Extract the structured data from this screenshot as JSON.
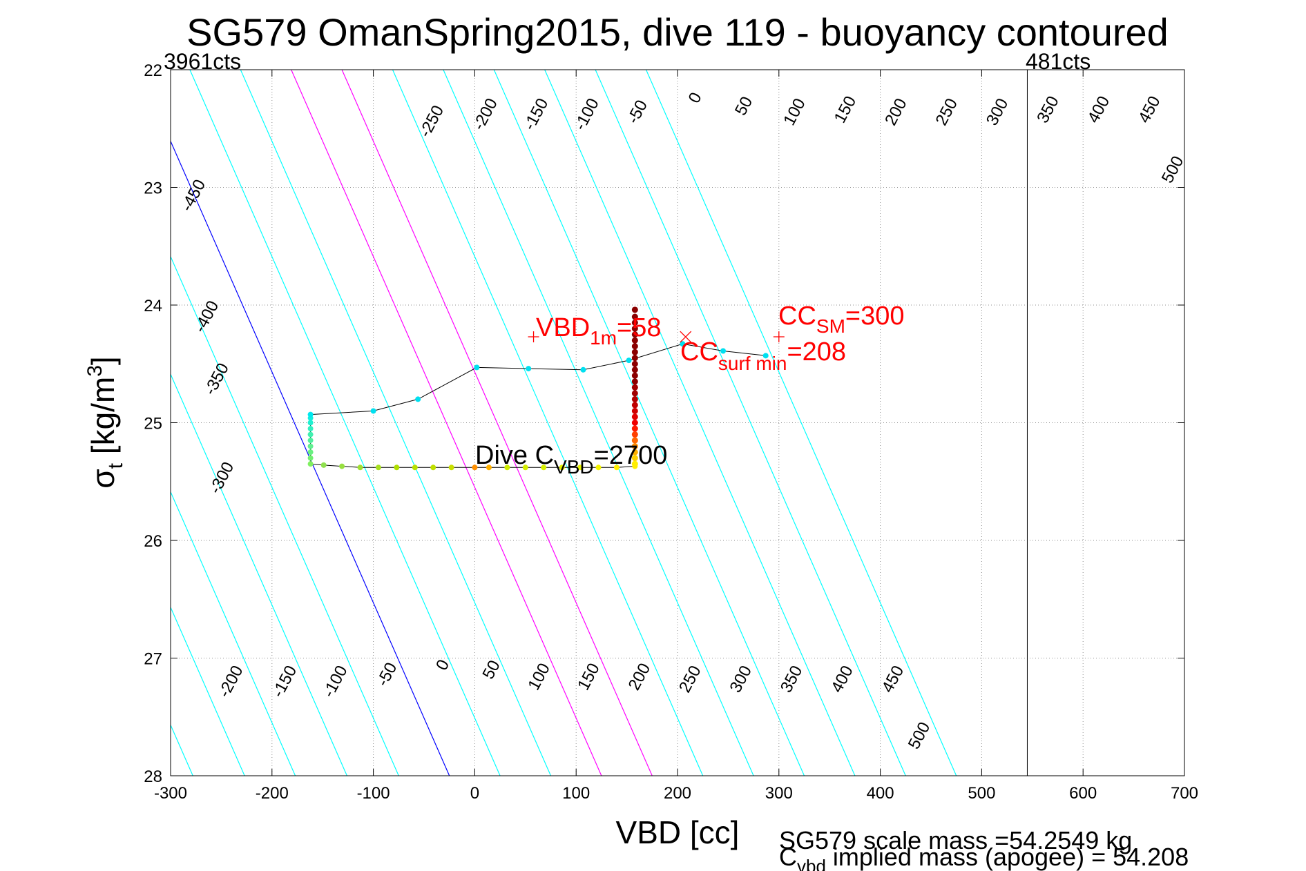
{
  "chart_data": {
    "type": "scatter",
    "title": "SG579 OmanSpring2015, dive 119 - buoyancy contoured",
    "xlabel": "VBD [cc]",
    "ylabel_main": "σ",
    "ylabel_sub": "t",
    "ylabel_rest": " [kg/m",
    "ylabel_sup": "3",
    "ylabel_close": "]",
    "xlim": [
      -300,
      700
    ],
    "ylim": [
      22,
      28
    ],
    "y_reversed": true,
    "grid": true,
    "xticks": [
      -300,
      -200,
      -100,
      0,
      100,
      200,
      300,
      400,
      500,
      600,
      700
    ],
    "yticks": [
      22,
      23,
      24,
      25,
      26,
      27,
      28
    ],
    "corner_left": "3961cts",
    "corner_right": "481cts",
    "vline_x": 545,
    "colors": {
      "contour": "#00ffff",
      "zero_contour": "#0000ff",
      "highlight_contour": "#ff00ff",
      "profile_line": "#000000",
      "annotation": "#ff0000"
    },
    "contours": {
      "levels": [
        -450,
        -400,
        -350,
        -300,
        -250,
        -200,
        -150,
        -100,
        -50,
        0,
        50,
        100,
        150,
        200,
        250,
        300,
        350,
        400,
        450,
        500
      ],
      "anchor_x_at_28": [
        -479,
        -429,
        -379,
        -328,
        -278,
        -227,
        -177,
        -126,
        -75,
        -25,
        25,
        75,
        125,
        175,
        225,
        275,
        325,
        375,
        425,
        475
      ],
      "zero_level": 0,
      "highlight_levels": [
        150,
        200
      ],
      "labels_top": [
        {
          "text": "-450",
          "x": -273,
          "y": 23.09
        },
        {
          "text": "-400",
          "x": -260,
          "y": 24.12
        },
        {
          "text": "-350",
          "x": -250,
          "y": 24.65
        },
        {
          "text": "-300",
          "x": -245,
          "y": 25.49
        },
        {
          "text": "-250",
          "x": -38,
          "y": 22.46
        },
        {
          "text": "-200",
          "x": 15,
          "y": 22.4
        },
        {
          "text": "-150",
          "x": 65,
          "y": 22.4
        },
        {
          "text": "-100",
          "x": 115,
          "y": 22.4
        },
        {
          "text": "-50",
          "x": 165,
          "y": 22.38
        },
        {
          "text": "0",
          "x": 222,
          "y": 22.26
        },
        {
          "text": "50",
          "x": 270,
          "y": 22.33
        },
        {
          "text": "100",
          "x": 320,
          "y": 22.38
        },
        {
          "text": "150",
          "x": 370,
          "y": 22.36
        },
        {
          "text": "200",
          "x": 420,
          "y": 22.38
        },
        {
          "text": "250",
          "x": 470,
          "y": 22.38
        },
        {
          "text": "300",
          "x": 520,
          "y": 22.38
        },
        {
          "text": "350",
          "x": 570,
          "y": 22.36
        },
        {
          "text": "400",
          "x": 620,
          "y": 22.36
        },
        {
          "text": "450",
          "x": 670,
          "y": 22.36
        },
        {
          "text": "500",
          "x": 693,
          "y": 22.87
        }
      ],
      "labels_bottom": [
        {
          "text": "-200",
          "x": -236,
          "y": 27.22
        },
        {
          "text": "-150",
          "x": -183,
          "y": 27.22
        },
        {
          "text": "-100",
          "x": -133,
          "y": 27.22
        },
        {
          "text": "-50",
          "x": -82,
          "y": 27.16
        },
        {
          "text": "0",
          "x": -27,
          "y": 27.08
        },
        {
          "text": "50",
          "x": 21,
          "y": 27.12
        },
        {
          "text": "100",
          "x": 68,
          "y": 27.18
        },
        {
          "text": "150",
          "x": 117,
          "y": 27.18
        },
        {
          "text": "200",
          "x": 167,
          "y": 27.18
        },
        {
          "text": "250",
          "x": 217,
          "y": 27.2
        },
        {
          "text": "300",
          "x": 267,
          "y": 27.2
        },
        {
          "text": "350",
          "x": 317,
          "y": 27.2
        },
        {
          "text": "400",
          "x": 367,
          "y": 27.2
        },
        {
          "text": "450",
          "x": 417,
          "y": 27.2
        },
        {
          "text": "500",
          "x": 443,
          "y": 27.68
        }
      ]
    },
    "profile": {
      "points": [
        {
          "x": 158,
          "y": 24.04,
          "c": "#8b0000"
        },
        {
          "x": 158,
          "y": 24.1,
          "c": "#8b0000"
        },
        {
          "x": 158,
          "y": 24.15,
          "c": "#8b0000"
        },
        {
          "x": 158,
          "y": 24.2,
          "c": "#8b0000"
        },
        {
          "x": 158,
          "y": 24.25,
          "c": "#8b0000"
        },
        {
          "x": 158,
          "y": 24.3,
          "c": "#8b0000"
        },
        {
          "x": 158,
          "y": 24.35,
          "c": "#8b0000"
        },
        {
          "x": 158,
          "y": 24.4,
          "c": "#8b0000"
        },
        {
          "x": 158,
          "y": 24.45,
          "c": "#8b0000"
        },
        {
          "x": 158,
          "y": 24.5,
          "c": "#8b0000"
        },
        {
          "x": 158,
          "y": 24.55,
          "c": "#8b0000"
        },
        {
          "x": 158,
          "y": 24.6,
          "c": "#8b0000"
        },
        {
          "x": 158,
          "y": 24.65,
          "c": "#8b0000"
        },
        {
          "x": 158,
          "y": 24.7,
          "c": "#a00000"
        },
        {
          "x": 158,
          "y": 24.75,
          "c": "#a00000"
        },
        {
          "x": 158,
          "y": 24.8,
          "c": "#b00000"
        },
        {
          "x": 158,
          "y": 24.85,
          "c": "#c00000"
        },
        {
          "x": 158,
          "y": 24.9,
          "c": "#d00000"
        },
        {
          "x": 158,
          "y": 24.95,
          "c": "#e00000"
        },
        {
          "x": 158,
          "y": 25.0,
          "c": "#f00000"
        },
        {
          "x": 158,
          "y": 25.05,
          "c": "#ff1a00"
        },
        {
          "x": 158,
          "y": 25.1,
          "c": "#ff4000"
        },
        {
          "x": 158,
          "y": 25.15,
          "c": "#ff6600"
        },
        {
          "x": 158,
          "y": 25.2,
          "c": "#ff8c00"
        },
        {
          "x": 158,
          "y": 25.25,
          "c": "#ffb000"
        },
        {
          "x": 158,
          "y": 25.3,
          "c": "#ffd000"
        },
        {
          "x": 158,
          "y": 25.35,
          "c": "#ffee00"
        }
      ],
      "path": [
        {
          "x": 158,
          "y": 25.37,
          "c": "#ffee00"
        },
        {
          "x": 140,
          "y": 25.38,
          "c": "#fff000"
        },
        {
          "x": 122,
          "y": 25.38,
          "c": "#f4f400"
        },
        {
          "x": 104,
          "y": 25.38,
          "c": "#e8f400"
        },
        {
          "x": 86,
          "y": 25.38,
          "c": "#e0f000"
        },
        {
          "x": 68,
          "y": 25.38,
          "c": "#d8f000"
        },
        {
          "x": 50,
          "y": 25.38,
          "c": "#d4ee00"
        },
        {
          "x": 32,
          "y": 25.38,
          "c": "#d0ec00"
        },
        {
          "x": 14,
          "y": 25.38,
          "c": "#ffb000"
        },
        {
          "x": 0,
          "y": 25.38,
          "c": "#ff9000"
        },
        {
          "x": -23,
          "y": 25.38,
          "c": "#c8e000"
        },
        {
          "x": -41,
          "y": 25.38,
          "c": "#c0e000"
        },
        {
          "x": -59,
          "y": 25.38,
          "c": "#b8e000"
        },
        {
          "x": -77,
          "y": 25.38,
          "c": "#b0e000"
        },
        {
          "x": -95,
          "y": 25.38,
          "c": "#a8e020"
        },
        {
          "x": -113,
          "y": 25.38,
          "c": "#a0e030"
        },
        {
          "x": -131,
          "y": 25.37,
          "c": "#98e040"
        },
        {
          "x": -149,
          "y": 25.36,
          "c": "#90e050"
        },
        {
          "x": -162,
          "y": 25.35,
          "c": "#80f060"
        },
        {
          "x": -162,
          "y": 25.3,
          "c": "#70f070"
        },
        {
          "x": -162,
          "y": 25.25,
          "c": "#68f080"
        },
        {
          "x": -162,
          "y": 25.2,
          "c": "#60f090"
        },
        {
          "x": -162,
          "y": 25.15,
          "c": "#50f0a0"
        },
        {
          "x": -162,
          "y": 25.1,
          "c": "#40f0b0"
        },
        {
          "x": -162,
          "y": 25.05,
          "c": "#30f0c0"
        },
        {
          "x": -162,
          "y": 25.0,
          "c": "#20f0d0"
        },
        {
          "x": -162,
          "y": 24.96,
          "c": "#10f0e0"
        },
        {
          "x": -162,
          "y": 24.93,
          "c": "#00e8f0"
        },
        {
          "x": -100,
          "y": 24.9,
          "c": "#00e0f0"
        },
        {
          "x": -56,
          "y": 24.8,
          "c": "#00e0f0"
        },
        {
          "x": 2,
          "y": 24.53,
          "c": "#00e0f0"
        },
        {
          "x": 53,
          "y": 24.54,
          "c": "#00e0f0"
        },
        {
          "x": 107,
          "y": 24.55,
          "c": "#00e0f0"
        },
        {
          "x": 152,
          "y": 24.47,
          "c": "#00e0f0"
        },
        {
          "x": 205,
          "y": 24.33,
          "c": "#00e0f0"
        },
        {
          "x": 245,
          "y": 24.39,
          "c": "#00e0f0"
        },
        {
          "x": 287,
          "y": 24.43,
          "c": "#00e0f0"
        }
      ]
    },
    "markers": [
      {
        "kind": "plus",
        "x": 58,
        "y": 24.27
      },
      {
        "kind": "cross",
        "x": 208,
        "y": 24.27
      },
      {
        "kind": "plus",
        "x": 300,
        "y": 24.27
      }
    ],
    "annotations": {
      "vbd_main": "VBD",
      "vbd_sub": "1m",
      "vbd_val": "=58",
      "ccsm_main": "CC",
      "ccsm_sub": "SM",
      "ccsm_val": "=300",
      "ccsurf_main": "CC",
      "ccsurf_sub": "surf min",
      "ccsurf_val": "=208",
      "dive_main": "Dive C",
      "dive_sub": "VBD",
      "dive_val": "=2700"
    },
    "footer": {
      "line1": "SG579 scale mass =54.2549 kg",
      "line2_main": "C",
      "line2_sub": "vbd",
      "line2_rest": " implied mass (apogee) = 54.208"
    }
  }
}
